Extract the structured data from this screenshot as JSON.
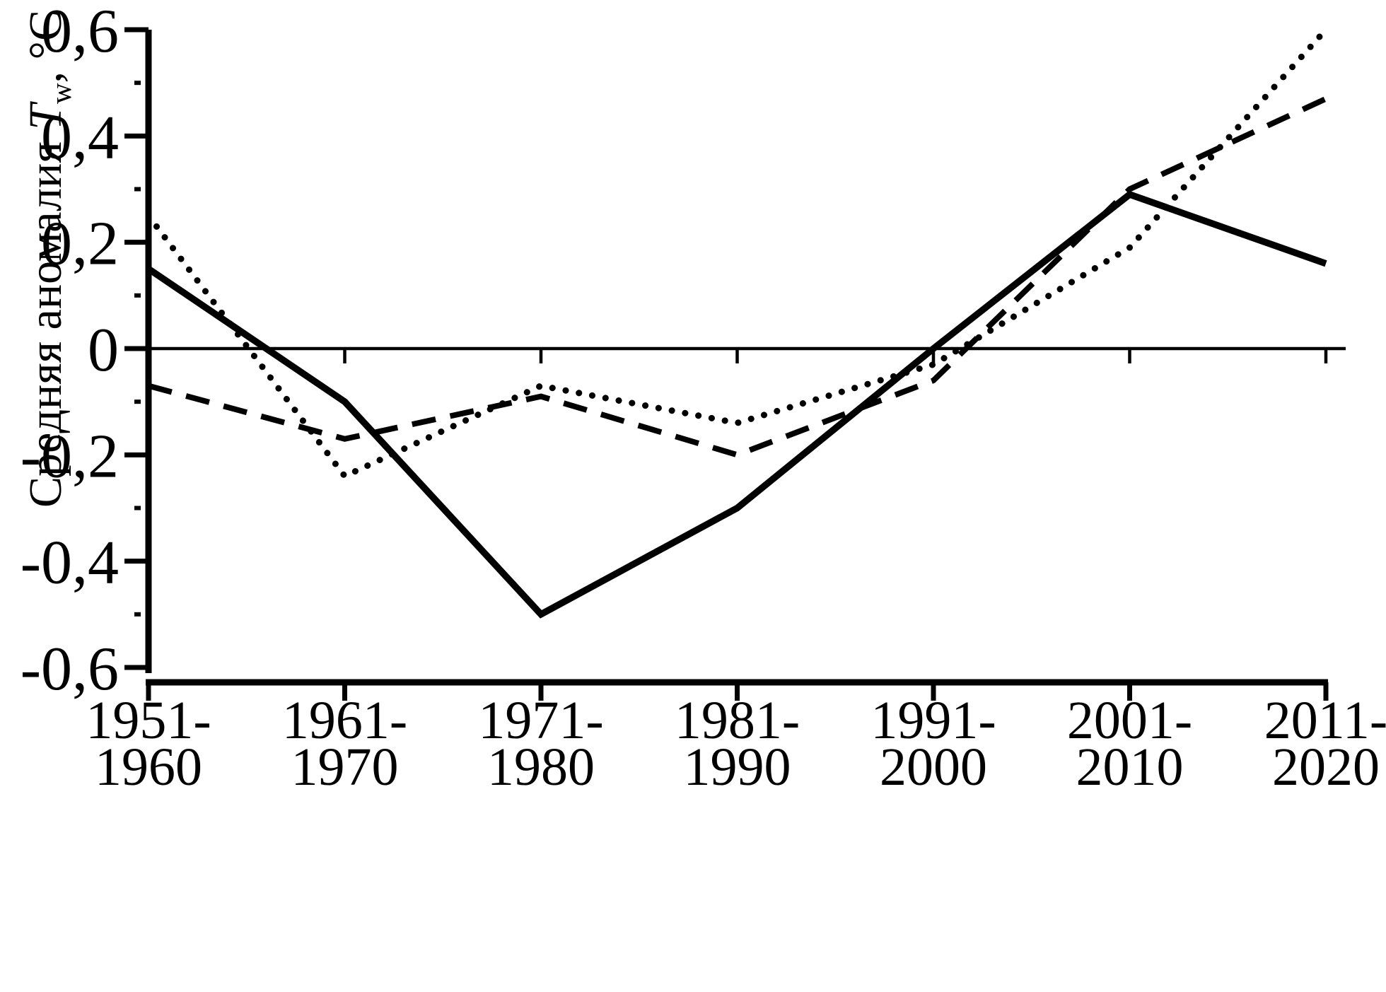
{
  "figure": {
    "background": "#ffffff",
    "ink_color": "#000000"
  },
  "chart_data": {
    "type": "line",
    "title": "",
    "xlabel": "",
    "ylabel": "Средняя аномалия Tw, °C",
    "ylabel_parts": {
      "prefix": "Средняя аномалия ",
      "symbol": "T",
      "subscript": "w",
      "suffix": ", °C"
    },
    "ylim": [
      -0.6,
      0.6
    ],
    "grid": false,
    "legend": "none",
    "zero_line": true,
    "categories": [
      "1951-1960",
      "1961-1970",
      "1971-1980",
      "1981-1990",
      "1991-2000",
      "2001-2010",
      "2011-2020"
    ],
    "x_tick_labels": [
      {
        "line1": "1951-",
        "line2": "1960"
      },
      {
        "line1": "1961-",
        "line2": "1970"
      },
      {
        "line1": "1971-",
        "line2": "1980"
      },
      {
        "line1": "1981-",
        "line2": "1990"
      },
      {
        "line1": "1991-",
        "line2": "2000"
      },
      {
        "line1": "2001-",
        "line2": "2010"
      },
      {
        "line1": "2011-",
        "line2": "2020"
      }
    ],
    "y_ticks": [
      {
        "value": 0.6,
        "label": "0,6"
      },
      {
        "value": 0.4,
        "label": "0,4"
      },
      {
        "value": 0.2,
        "label": "0,2"
      },
      {
        "value": 0,
        "label": "0"
      },
      {
        "value": -0.2,
        "label": "-0,2"
      },
      {
        "value": -0.4,
        "label": "-0,4"
      },
      {
        "value": -0.6,
        "label": "-0,6"
      }
    ],
    "y_minor_ticks": [
      0.5,
      0.3,
      0.1,
      -0.1,
      -0.3,
      -0.5
    ],
    "series": [
      {
        "name": "solid",
        "style": "solid",
        "values": [
          0.15,
          -0.1,
          -0.5,
          -0.3,
          0.0,
          0.29,
          0.16
        ]
      },
      {
        "name": "dashed",
        "style": "dashed",
        "values": [
          -0.07,
          -0.17,
          -0.09,
          -0.2,
          -0.06,
          0.3,
          0.47
        ]
      },
      {
        "name": "dotted",
        "style": "dotted",
        "values": [
          0.25,
          -0.24,
          -0.07,
          -0.14,
          -0.03,
          0.19,
          0.6
        ]
      }
    ]
  }
}
